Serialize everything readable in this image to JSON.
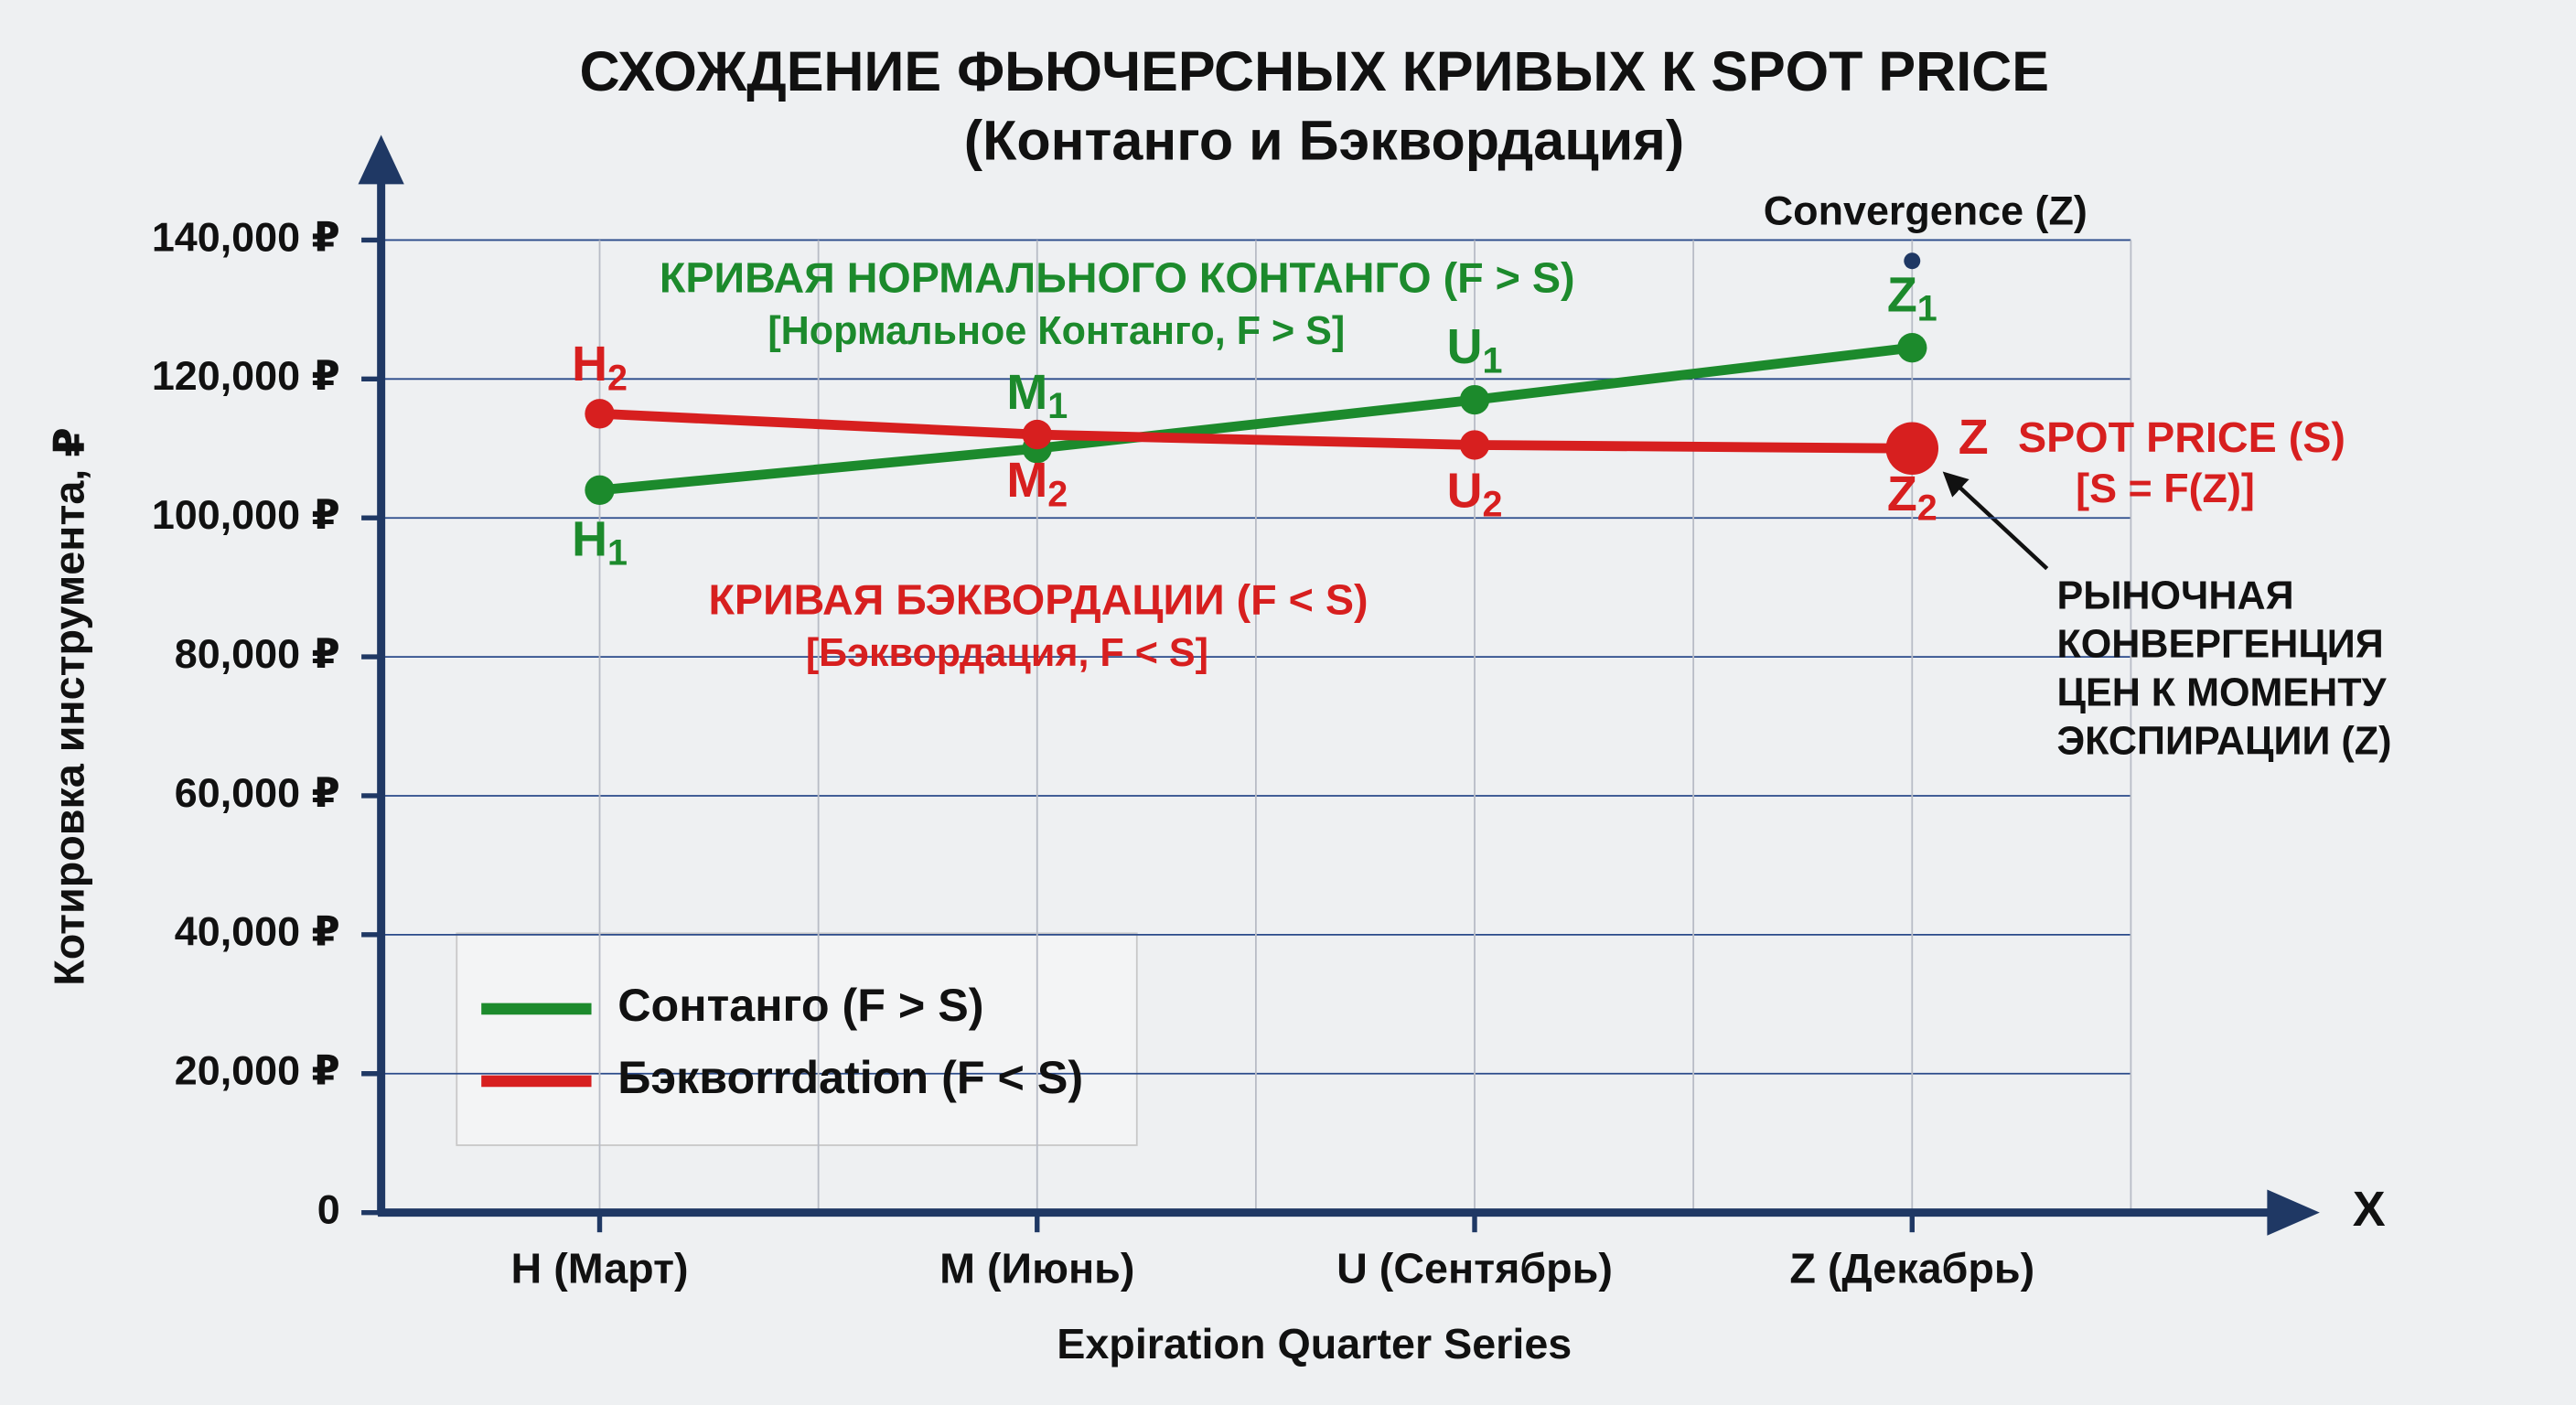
{
  "chart_data": {
    "type": "line",
    "title": "СХОЖДЕНИЕ ФЬЮЧЕРСНЫХ КРИВЫХ К SPOT PRICE",
    "subtitle": "(Контанго и Бэквордация)",
    "y_label": "Котировка инструмента, ₽",
    "x_label": "Expiration Quarter Series",
    "x_axis_end_label": "X",
    "categories": [
      "H (Март)",
      "M (Июнь)",
      "U (Сентябрь)",
      "Z (Декабрь)"
    ],
    "ylim": [
      0,
      140000
    ],
    "yticks": [
      0,
      {
        "value": 20000,
        "label": "20,000 ₽"
      },
      {
        "value": 40000,
        "label": "40,000 ₽"
      },
      {
        "value": 60000,
        "label": "60,000 ₽"
      },
      {
        "value": 80000,
        "label": "80,000 ₽"
      },
      {
        "value": 100000,
        "label": "100,000 ₽"
      },
      {
        "value": 120000,
        "label": "120,000 ₽"
      },
      {
        "value": 140000,
        "label": "140,000 ₽"
      }
    ],
    "grid": true,
    "series": [
      {
        "name": "Сонтанго (F > S)",
        "color": "#1c8a2c",
        "values": [
          104000,
          110000,
          117000,
          124500
        ],
        "point_labels": [
          {
            "text": "H",
            "sub": "1"
          },
          {
            "text": "M",
            "sub": "1"
          },
          {
            "text": "U",
            "sub": "1"
          },
          {
            "text": "Z",
            "sub": "1"
          }
        ],
        "curve_label": [
          "КРИВАЯ НОРМАЛЬНОГО КОНТАНГО (F > S)",
          "[Нормальное Контанго, F > S]"
        ]
      },
      {
        "name": "Бэквоrrdation (F < S)",
        "color": "#d71f1f",
        "values": [
          115000,
          112000,
          110500,
          110000
        ],
        "point_labels": [
          {
            "text": "H",
            "sub": "2"
          },
          {
            "text": "M",
            "sub": "2"
          },
          {
            "text": "U",
            "sub": "2"
          },
          {
            "text": "Z",
            "sub": "2"
          }
        ],
        "curve_label": [
          "КРИВАЯ БЭКВОРДАЦИИ (F < S)",
          "[Бэквордация, F < S]"
        ]
      }
    ],
    "convergence": {
      "label": "Convergence (Z)",
      "value": 137000
    },
    "spot_price": {
      "label": "Z",
      "title": "SPOT PRICE (S)",
      "formula": "[S = F(Z)]",
      "value": 110000
    },
    "note": [
      "РЫНОЧНАЯ",
      "КОНВЕРГЕНЦИЯ",
      "ЦЕН К МОМЕНТУ",
      "ЭКСПИРАЦИИ (Z)"
    ]
  }
}
